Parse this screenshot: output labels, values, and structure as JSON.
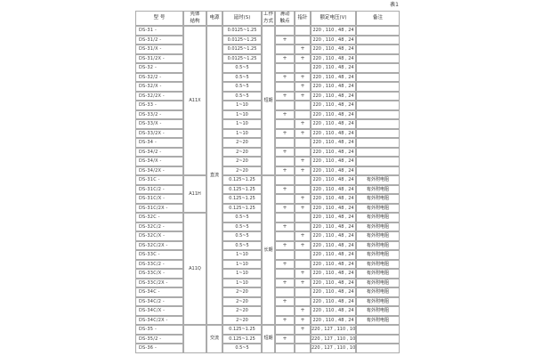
{
  "page_label": "表1",
  "table": {
    "columns": [
      {
        "key": "model",
        "label": "型 号"
      },
      {
        "key": "structure",
        "label": "壳体\n结构"
      },
      {
        "key": "power",
        "label": "电源"
      },
      {
        "key": "delay",
        "label": "延时(S)"
      },
      {
        "key": "work_mode",
        "label": "工作\n方式"
      },
      {
        "key": "sliding_contact",
        "label": "滑动\n触点"
      },
      {
        "key": "pointer",
        "label": "指针"
      },
      {
        "key": "voltage",
        "label": "额定电压(V)"
      },
      {
        "key": "remark",
        "label": "备注"
      }
    ],
    "row_fields": [
      "model",
      "delay",
      "sliding_contact",
      "pointer",
      "voltage",
      "remark"
    ],
    "rows": [
      [
        "DS-31 -",
        "0.0125~1.25",
        "",
        "",
        "220 , 110 , 48 , 24",
        ""
      ],
      [
        "DS-31/2 -",
        "0.0125~1.25",
        "+",
        "",
        "220 , 110 , 48 , 24",
        ""
      ],
      [
        "DS-31/X -",
        "0.0125~1.25",
        "",
        "+",
        "220 , 110 , 48 , 24",
        ""
      ],
      [
        "DS-31/2X -",
        "0.0125~1.25",
        "+",
        "+",
        "220 , 110 , 48 , 24",
        ""
      ],
      [
        "DS-32 -",
        "0.5~5",
        "",
        "",
        "220 , 110 , 48 , 24",
        ""
      ],
      [
        "DS-32/2 -",
        "0.5~5",
        "+",
        "+",
        "220 , 110 , 48 , 24",
        ""
      ],
      [
        "DS-32/X -",
        "0.5~5",
        "",
        "+",
        "220 , 110 , 48 , 24",
        ""
      ],
      [
        "DS-32/2X -",
        "0.5~5",
        "+",
        "+",
        "220 , 110 , 48 , 24",
        ""
      ],
      [
        "DS-33 -",
        "1~10",
        "",
        "",
        "220 , 110 , 48 , 24",
        ""
      ],
      [
        "DS-33/2 -",
        "1~10",
        "+",
        "",
        "220 , 110 , 48 , 24",
        ""
      ],
      [
        "DS-33/X -",
        "1~10",
        "",
        "+",
        "220 , 110 , 48 , 24",
        ""
      ],
      [
        "DS-33/2X -",
        "1~10",
        "+",
        "+",
        "220 , 110 , 48 , 24",
        ""
      ],
      [
        "DS-34 -",
        "2~20",
        "",
        "",
        "220 , 110 , 48 , 24",
        ""
      ],
      [
        "DS-34/2 -",
        "2~20",
        "+",
        "",
        "220 , 110 , 48 , 24",
        ""
      ],
      [
        "DS-34/X -",
        "2~20",
        "",
        "+",
        "220 , 110 , 48 , 24",
        ""
      ],
      [
        "DS-34/2X -",
        "2~20",
        "+",
        "+",
        "220 , 110 , 48 , 24",
        ""
      ],
      [
        "DS-31C -",
        "0.125~1.25",
        "",
        "",
        "220 , 110 , 48 , 24",
        "有外附电阻"
      ],
      [
        "DS-31C/2 -",
        "0.125~1.25",
        "+",
        "",
        "220 , 110 , 48 , 24",
        "有外附电阻"
      ],
      [
        "DS-31C/X -",
        "0.125~1.25",
        "",
        "+",
        "220 , 110 , 48 , 24",
        "有外附电阻"
      ],
      [
        "DS-31C/2X -",
        "0.125~1.25",
        "+",
        "+",
        "220 , 110 , 48 , 24",
        "有外附电阻"
      ],
      [
        "DS-32C -",
        "0.5~5",
        "",
        "",
        "220 , 110 , 48 , 24",
        "有外附电阻"
      ],
      [
        "DS-32C/2 -",
        "0.5~5",
        "+",
        "",
        "220 , 110 , 48 , 24",
        "有外附电阻"
      ],
      [
        "DS-32C/X -",
        "0.5~5",
        "",
        "+",
        "220 , 110 , 48 , 24",
        "有外附电阻"
      ],
      [
        "DS-32C/2X -",
        "0.5~5",
        "+",
        "+",
        "220 , 110 , 48 , 24",
        "有外附电阻"
      ],
      [
        "DS-33C -",
        "1~10",
        "",
        "",
        "220 , 110 , 48 , 24",
        "有外附电阻"
      ],
      [
        "DS-33C/2 -",
        "1~10",
        "+",
        "",
        "220 , 110 , 48 , 24",
        "有外附电阻"
      ],
      [
        "DS-33C/X -",
        "1~10",
        "",
        "+",
        "220 , 110 , 48 , 24",
        "有外附电阻"
      ],
      [
        "DS-33C/2X -",
        "1~10",
        "+",
        "+",
        "220 , 110 , 48 , 24",
        "有外附电阻"
      ],
      [
        "DS-34C -",
        "2~20",
        "",
        "",
        "220 , 110 , 48 , 24",
        "有外附电阻"
      ],
      [
        "DS-34C/2 -",
        "2~20",
        "+",
        "",
        "220 , 110 , 48 , 24",
        "有外附电阻"
      ],
      [
        "DS-34C/X -",
        "2~20",
        "",
        "+",
        "220 , 110 , 48 , 24",
        "有外附电阻"
      ],
      [
        "DS-34C/2X -",
        "2~20",
        "+",
        "+",
        "220 , 110 , 48 , 24",
        "有外附电阻"
      ],
      [
        "DS-35 -",
        "0.125~1.25",
        "",
        "+",
        "220 , 127 , 110 , 100",
        ""
      ],
      [
        "DS-35/2 -",
        "0.125~1.25",
        "+",
        "",
        "220 , 127 , 110 , 100",
        ""
      ],
      [
        "DS-36 -",
        "0.5~5",
        "",
        "",
        "220 , 127 , 110 , 100",
        ""
      ]
    ],
    "merges": {
      "structure": [
        {
          "start": 0,
          "count": 16,
          "label": "A11X"
        },
        {
          "start": 16,
          "count": 4,
          "label": "A11H"
        },
        {
          "start": 20,
          "count": 12,
          "label": "A11Q"
        },
        {
          "start": 32,
          "count": 3,
          "label": ""
        }
      ],
      "power": [
        {
          "start": 0,
          "count": 32,
          "label": "直流"
        },
        {
          "start": 32,
          "count": 3,
          "label": "交流"
        }
      ],
      "work_mode": [
        {
          "start": 0,
          "count": 16,
          "label": "短期"
        },
        {
          "start": 16,
          "count": 16,
          "label": "长期"
        },
        {
          "start": 32,
          "count": 3,
          "label": "短期"
        }
      ]
    }
  }
}
